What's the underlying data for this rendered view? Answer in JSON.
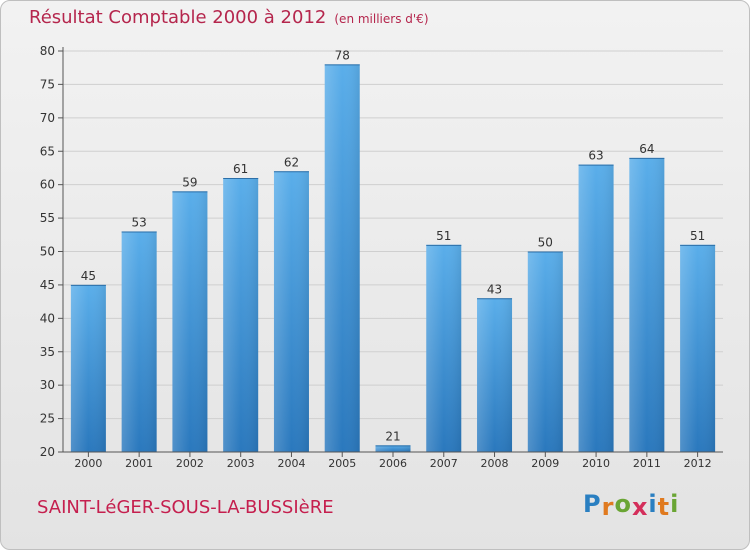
{
  "chart_data": {
    "type": "bar",
    "title": "Résultat Comptable 2000 à 2012",
    "subtitle": "(en milliers d'€)",
    "categories": [
      "2000",
      "2001",
      "2002",
      "2003",
      "2004",
      "2005",
      "2006",
      "2007",
      "2008",
      "2009",
      "2010",
      "2011",
      "2012"
    ],
    "values": [
      45,
      53,
      59,
      61,
      62,
      78,
      21,
      51,
      43,
      50,
      63,
      64,
      51
    ],
    "ylim": [
      20,
      80
    ],
    "yticks": [
      20,
      25,
      30,
      35,
      40,
      45,
      50,
      55,
      60,
      65,
      70,
      75,
      80
    ],
    "xlabel": "",
    "ylabel": "",
    "grid": true,
    "bar_color": "#4f9fe0"
  },
  "commune": "SAINT-LéGER-SOUS-LA-BUSSIèRE",
  "logo": {
    "letters": [
      "P",
      "r",
      "o",
      "x",
      "i",
      "t",
      "i"
    ],
    "colors": [
      "#2a7fc1",
      "#e07a1f",
      "#6aa534",
      "#d42f5b",
      "#2a7fc1",
      "#e07a1f",
      "#6aa534"
    ]
  },
  "colors": {
    "title": "#b5264d",
    "commune": "#c51f4e",
    "axis": "#333333"
  }
}
